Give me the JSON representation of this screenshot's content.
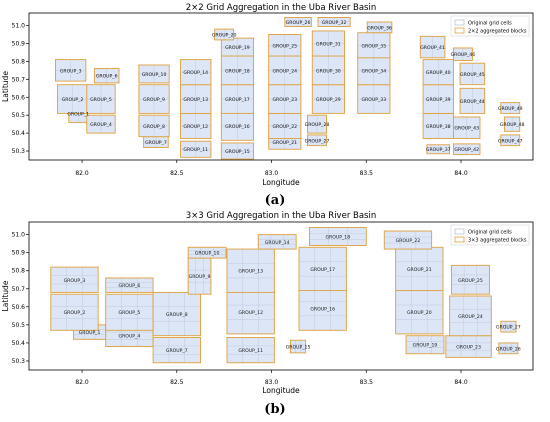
{
  "colors": {
    "cell_fill": "#dde6f7",
    "cell_edge": "#b9c3d4",
    "block_edge": "#e0a13c",
    "axis": "#000000"
  },
  "captions": {
    "a": "(a)",
    "b": "(b)"
  },
  "chart_data": [
    {
      "type": "grid-map",
      "title": "2×2 Grid Aggregation in the Uba River Basin",
      "xlabel": "Longitude",
      "ylabel": "Latitude",
      "xlim": [
        81.72,
        84.38
      ],
      "ylim": [
        50.25,
        51.07
      ],
      "xticks": [
        "82.0",
        "82.5",
        "83.0",
        "83.5",
        "84.0"
      ],
      "yticks": [
        "50.3",
        "50.4",
        "50.5",
        "50.6",
        "50.7",
        "50.8",
        "50.9",
        "51.0"
      ],
      "legend": {
        "position": "top-right",
        "entries": [
          "Original grid cells",
          "2×2 aggregated blocks"
        ]
      },
      "blocks": [
        {
          "label": "GROUP_1",
          "lon": 81.98,
          "lat": 50.51,
          "w": 0.1,
          "h": 0.1
        },
        {
          "label": "GROUP_2",
          "lon": 81.95,
          "lat": 50.59,
          "w": 0.16,
          "h": 0.16
        },
        {
          "label": "GROUP_3",
          "lon": 81.94,
          "lat": 50.75,
          "w": 0.16,
          "h": 0.12
        },
        {
          "label": "GROUP_4",
          "lon": 82.1,
          "lat": 50.45,
          "w": 0.15,
          "h": 0.1
        },
        {
          "label": "GROUP_5",
          "lon": 82.1,
          "lat": 50.59,
          "w": 0.15,
          "h": 0.16
        },
        {
          "label": "GROUP_6",
          "lon": 82.13,
          "lat": 50.72,
          "w": 0.13,
          "h": 0.08
        },
        {
          "label": "GROUP_7",
          "lon": 82.39,
          "lat": 50.35,
          "w": 0.13,
          "h": 0.06
        },
        {
          "label": "GROUP_8",
          "lon": 82.38,
          "lat": 50.44,
          "w": 0.16,
          "h": 0.12
        },
        {
          "label": "GROUP_9",
          "lon": 82.38,
          "lat": 50.59,
          "w": 0.16,
          "h": 0.16
        },
        {
          "label": "GROUP_10",
          "lon": 82.38,
          "lat": 50.73,
          "w": 0.16,
          "h": 0.1
        },
        {
          "label": "GROUP_11",
          "lon": 82.6,
          "lat": 50.31,
          "w": 0.16,
          "h": 0.09
        },
        {
          "label": "GROUP_12",
          "lon": 82.6,
          "lat": 50.44,
          "w": 0.16,
          "h": 0.14
        },
        {
          "label": "GROUP_13",
          "lon": 82.6,
          "lat": 50.59,
          "w": 0.16,
          "h": 0.16
        },
        {
          "label": "GROUP_14",
          "lon": 82.6,
          "lat": 50.74,
          "w": 0.16,
          "h": 0.14
        },
        {
          "label": "GROUP_15",
          "lon": 82.82,
          "lat": 50.3,
          "w": 0.17,
          "h": 0.09
        },
        {
          "label": "GROUP_16",
          "lon": 82.82,
          "lat": 50.44,
          "w": 0.17,
          "h": 0.16
        },
        {
          "label": "GROUP_17",
          "lon": 82.82,
          "lat": 50.59,
          "w": 0.17,
          "h": 0.16
        },
        {
          "label": "GROUP_18",
          "lon": 82.82,
          "lat": 50.75,
          "w": 0.17,
          "h": 0.16
        },
        {
          "label": "GROUP_19",
          "lon": 82.82,
          "lat": 50.88,
          "w": 0.17,
          "h": 0.1
        },
        {
          "label": "GROUP_20",
          "lon": 82.75,
          "lat": 50.95,
          "w": 0.1,
          "h": 0.06
        },
        {
          "label": "GROUP_21",
          "lon": 83.07,
          "lat": 50.35,
          "w": 0.17,
          "h": 0.08
        },
        {
          "label": "GROUP_22",
          "lon": 83.07,
          "lat": 50.44,
          "w": 0.17,
          "h": 0.14
        },
        {
          "label": "GROUP_23",
          "lon": 83.07,
          "lat": 50.59,
          "w": 0.17,
          "h": 0.16
        },
        {
          "label": "GROUP_24",
          "lon": 83.07,
          "lat": 50.75,
          "w": 0.17,
          "h": 0.16
        },
        {
          "label": "GROUP_25",
          "lon": 83.07,
          "lat": 50.89,
          "w": 0.17,
          "h": 0.12
        },
        {
          "label": "GROUP_26",
          "lon": 83.14,
          "lat": 51.02,
          "w": 0.14,
          "h": 0.05
        },
        {
          "label": "GROUP_27",
          "lon": 83.24,
          "lat": 50.36,
          "w": 0.1,
          "h": 0.06
        },
        {
          "label": "GROUP_28",
          "lon": 83.24,
          "lat": 50.45,
          "w": 0.1,
          "h": 0.1
        },
        {
          "label": "GROUP_29",
          "lon": 83.3,
          "lat": 50.59,
          "w": 0.17,
          "h": 0.16
        },
        {
          "label": "GROUP_30",
          "lon": 83.3,
          "lat": 50.75,
          "w": 0.17,
          "h": 0.16
        },
        {
          "label": "GROUP_31",
          "lon": 83.3,
          "lat": 50.9,
          "w": 0.17,
          "h": 0.14
        },
        {
          "label": "GROUP_32",
          "lon": 83.33,
          "lat": 51.02,
          "w": 0.17,
          "h": 0.05
        },
        {
          "label": "GROUP_33",
          "lon": 83.54,
          "lat": 50.59,
          "w": 0.17,
          "h": 0.16
        },
        {
          "label": "GROUP_34",
          "lon": 83.54,
          "lat": 50.75,
          "w": 0.17,
          "h": 0.16
        },
        {
          "label": "GROUP_35",
          "lon": 83.54,
          "lat": 50.89,
          "w": 0.17,
          "h": 0.14
        },
        {
          "label": "GROUP_36",
          "lon": 83.57,
          "lat": 50.99,
          "w": 0.13,
          "h": 0.06
        },
        {
          "label": "GROUP_37",
          "lon": 83.88,
          "lat": 50.31,
          "w": 0.12,
          "h": 0.05
        },
        {
          "label": "GROUP_38",
          "lon": 83.88,
          "lat": 50.44,
          "w": 0.16,
          "h": 0.14
        },
        {
          "label": "GROUP_39",
          "lon": 83.88,
          "lat": 50.59,
          "w": 0.16,
          "h": 0.16
        },
        {
          "label": "GROUP_40",
          "lon": 83.88,
          "lat": 50.74,
          "w": 0.16,
          "h": 0.14
        },
        {
          "label": "GROUP_41",
          "lon": 83.85,
          "lat": 50.88,
          "w": 0.13,
          "h": 0.12
        },
        {
          "label": "GROUP_42",
          "lon": 84.03,
          "lat": 50.31,
          "w": 0.14,
          "h": 0.06
        },
        {
          "label": "GROUP_43",
          "lon": 84.03,
          "lat": 50.43,
          "w": 0.14,
          "h": 0.12
        },
        {
          "label": "GROUP_44",
          "lon": 84.06,
          "lat": 50.58,
          "w": 0.13,
          "h": 0.14
        },
        {
          "label": "GROUP_45",
          "lon": 84.06,
          "lat": 50.73,
          "w": 0.13,
          "h": 0.12
        },
        {
          "label": "GROUP_46",
          "lon": 84.01,
          "lat": 50.84,
          "w": 0.1,
          "h": 0.07
        },
        {
          "label": "GROUP_47",
          "lon": 84.26,
          "lat": 50.36,
          "w": 0.1,
          "h": 0.06
        },
        {
          "label": "GROUP_48",
          "lon": 84.27,
          "lat": 50.45,
          "w": 0.08,
          "h": 0.08
        },
        {
          "label": "GROUP_49",
          "lon": 84.26,
          "lat": 50.54,
          "w": 0.1,
          "h": 0.06
        }
      ]
    },
    {
      "type": "grid-map",
      "title": "3×3 Grid Aggregation in the Uba River Basin",
      "xlabel": "Longitude",
      "ylabel": "Latitude",
      "xlim": [
        81.72,
        84.38
      ],
      "ylim": [
        50.25,
        51.07
      ],
      "xticks": [
        "82.0",
        "82.5",
        "83.0",
        "83.5",
        "84.0"
      ],
      "yticks": [
        "50.3",
        "50.4",
        "50.5",
        "50.6",
        "50.7",
        "50.8",
        "50.9",
        "51.0"
      ],
      "legend": {
        "position": "top-right",
        "entries": [
          "Original grid cells",
          "3×3 aggregated blocks"
        ]
      },
      "blocks": [
        {
          "label": "GROUP_1",
          "lon": 82.04,
          "lat": 50.46,
          "w": 0.17,
          "h": 0.08
        },
        {
          "label": "GROUP_2",
          "lon": 81.96,
          "lat": 50.57,
          "w": 0.25,
          "h": 0.2
        },
        {
          "label": "GROUP_3",
          "lon": 81.96,
          "lat": 50.75,
          "w": 0.25,
          "h": 0.14
        },
        {
          "label": "GROUP_4",
          "lon": 82.25,
          "lat": 50.44,
          "w": 0.25,
          "h": 0.12
        },
        {
          "label": "GROUP_5",
          "lon": 82.25,
          "lat": 50.57,
          "w": 0.25,
          "h": 0.2
        },
        {
          "label": "GROUP_6",
          "lon": 82.25,
          "lat": 50.72,
          "w": 0.25,
          "h": 0.08
        },
        {
          "label": "GROUP_7",
          "lon": 82.5,
          "lat": 50.36,
          "w": 0.25,
          "h": 0.14
        },
        {
          "label": "GROUP_8",
          "lon": 82.5,
          "lat": 50.56,
          "w": 0.25,
          "h": 0.24
        },
        {
          "label": "GROUP_9",
          "lon": 82.62,
          "lat": 50.77,
          "w": 0.12,
          "h": 0.2
        },
        {
          "label": "GROUP_10",
          "lon": 82.66,
          "lat": 50.9,
          "w": 0.2,
          "h": 0.06
        },
        {
          "label": "GROUP_11",
          "lon": 82.89,
          "lat": 50.36,
          "w": 0.25,
          "h": 0.14
        },
        {
          "label": "GROUP_12",
          "lon": 82.89,
          "lat": 50.57,
          "w": 0.25,
          "h": 0.24
        },
        {
          "label": "GROUP_13",
          "lon": 82.89,
          "lat": 50.8,
          "w": 0.25,
          "h": 0.24
        },
        {
          "label": "GROUP_14",
          "lon": 83.03,
          "lat": 50.96,
          "w": 0.2,
          "h": 0.08
        },
        {
          "label": "GROUP_15",
          "lon": 83.14,
          "lat": 50.38,
          "w": 0.08,
          "h": 0.07
        },
        {
          "label": "GROUP_16",
          "lon": 83.27,
          "lat": 50.59,
          "w": 0.25,
          "h": 0.24
        },
        {
          "label": "GROUP_17",
          "lon": 83.27,
          "lat": 50.81,
          "w": 0.25,
          "h": 0.24
        },
        {
          "label": "GROUP_18",
          "lon": 83.35,
          "lat": 50.99,
          "w": 0.3,
          "h": 0.1
        },
        {
          "label": "GROUP_19",
          "lon": 83.81,
          "lat": 50.39,
          "w": 0.2,
          "h": 0.1
        },
        {
          "label": "GROUP_20",
          "lon": 83.78,
          "lat": 50.57,
          "w": 0.25,
          "h": 0.24
        },
        {
          "label": "GROUP_21",
          "lon": 83.78,
          "lat": 50.81,
          "w": 0.25,
          "h": 0.24
        },
        {
          "label": "GROUP_22",
          "lon": 83.72,
          "lat": 50.97,
          "w": 0.25,
          "h": 0.1
        },
        {
          "label": "GROUP_23",
          "lon": 84.04,
          "lat": 50.38,
          "w": 0.24,
          "h": 0.12
        },
        {
          "label": "GROUP_24",
          "lon": 84.05,
          "lat": 50.55,
          "w": 0.22,
          "h": 0.22
        },
        {
          "label": "GROUP_25",
          "lon": 84.05,
          "lat": 50.75,
          "w": 0.2,
          "h": 0.16
        },
        {
          "label": "GROUP_26",
          "lon": 84.25,
          "lat": 50.37,
          "w": 0.1,
          "h": 0.06
        },
        {
          "label": "GROUP_27",
          "lon": 84.25,
          "lat": 50.49,
          "w": 0.08,
          "h": 0.06
        }
      ]
    }
  ]
}
